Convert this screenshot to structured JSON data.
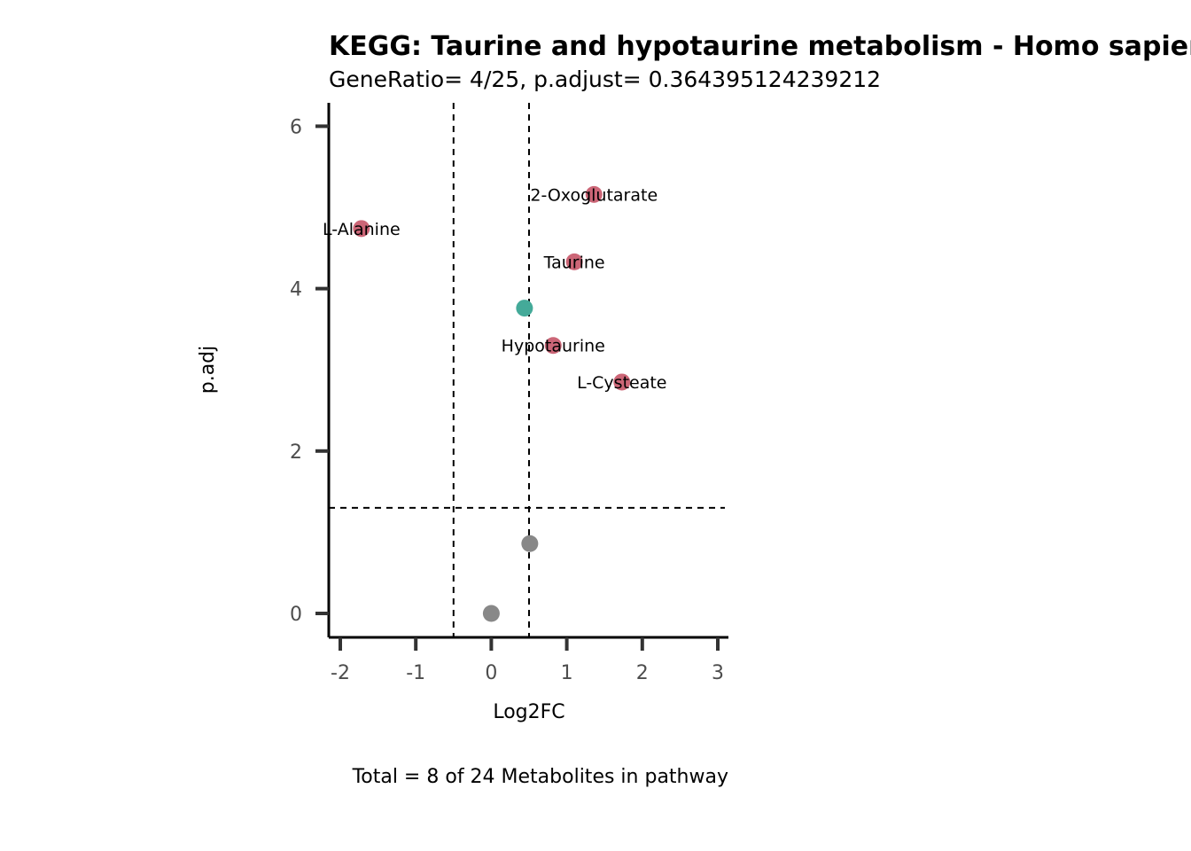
{
  "chart_data": {
    "type": "scatter",
    "title": "KEGG: Taurine and hypotaurine metabolism - Homo sapiens (human)",
    "subtitle": "GeneRatio= 4/25, p.adjust= 0.364395124239212",
    "xlabel": "Log2FC",
    "ylabel": "p.adj",
    "caption": "Total = 8 of 24 Metabolites in pathway",
    "xlim": [
      -2.15,
      3.15
    ],
    "ylim": [
      -0.3,
      6.3
    ],
    "x_ticks": [
      -2,
      -1,
      0,
      1,
      2,
      3
    ],
    "y_ticks": [
      0,
      2,
      4,
      6
    ],
    "thresholds": {
      "log2fc": [
        -0.5,
        0.5
      ],
      "p_adj": 1.3
    },
    "grid": false,
    "legend": "none",
    "colors": {
      "up": "#cc6677",
      "down": "#44aa99",
      "ns": "#888888",
      "threshold_line": "#000000",
      "axis": "#000000",
      "tick": "#333333"
    },
    "points": [
      {
        "x": 1.36,
        "y": 5.16,
        "label": "2-Oxoglutarate",
        "group": "up"
      },
      {
        "x": -1.72,
        "y": 4.74,
        "label": "L-Alanine",
        "group": "up"
      },
      {
        "x": 1.1,
        "y": 4.33,
        "label": "Taurine",
        "group": "up"
      },
      {
        "x": 0.44,
        "y": 3.76,
        "label": "",
        "group": "down"
      },
      {
        "x": 0.82,
        "y": 3.3,
        "label": "Hypotaurine",
        "group": "up"
      },
      {
        "x": 1.73,
        "y": 2.85,
        "label": "L-Cysteate",
        "group": "up"
      },
      {
        "x": 0.51,
        "y": 0.86,
        "label": "",
        "group": "ns"
      },
      {
        "x": 0.0,
        "y": 0.0,
        "label": "",
        "group": "ns"
      }
    ]
  }
}
